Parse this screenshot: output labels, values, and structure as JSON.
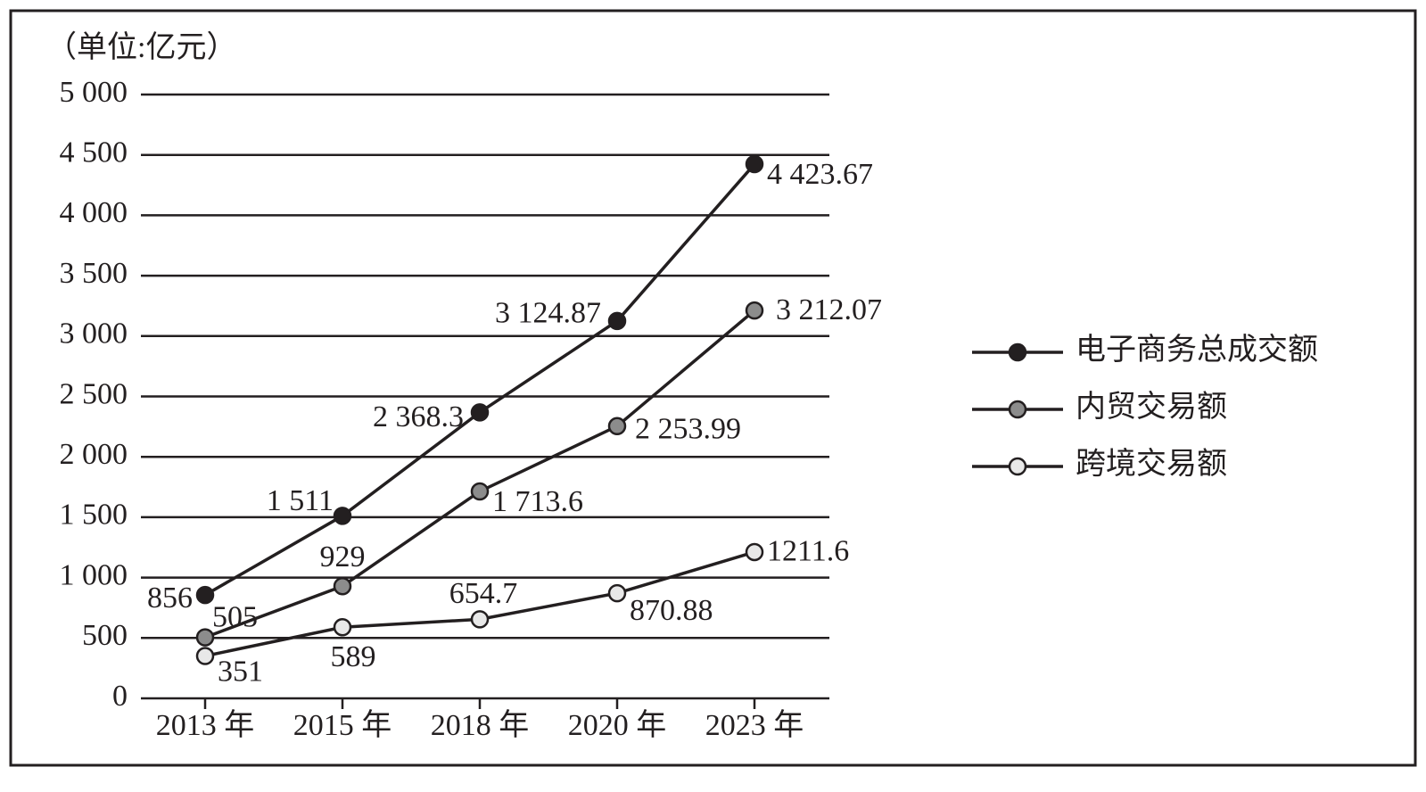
{
  "chart_data": {
    "type": "line",
    "unit_label": "（单位:亿元）",
    "categories": [
      "2013 年",
      "2015 年",
      "2018 年",
      "2020 年",
      "2023 年"
    ],
    "series": [
      {
        "name": "电子商务总成交额",
        "color": "#231f20",
        "values": [
          856,
          1511,
          2368.3,
          3124.87,
          4423.67
        ],
        "value_labels": [
          "856",
          "1 511",
          "2 368.3",
          "3 124.87",
          "4 423.67"
        ]
      },
      {
        "name": "内贸交易额",
        "color": "#8c8c8c",
        "values": [
          505,
          929,
          1713.6,
          2253.99,
          3212.07
        ],
        "value_labels": [
          "505",
          "929",
          "1 713.6",
          "2 253.99",
          "3 212.07"
        ]
      },
      {
        "name": "跨境交易额",
        "color": "#e8e8e8",
        "values": [
          351,
          589,
          654.7,
          870.88,
          1211.6
        ],
        "value_labels": [
          "351",
          "589",
          "654.7",
          "870.88",
          "1211.6"
        ]
      }
    ],
    "ylim": [
      0,
      5000
    ],
    "yticks": [
      0,
      500,
      {
        "value": 1000,
        "label": "1 000"
      },
      {
        "value": 1500,
        "label": "1 500"
      },
      {
        "value": 2000,
        "label": "2 000"
      },
      {
        "value": 2500,
        "label": "2 500"
      },
      {
        "value": 3000,
        "label": "3 000"
      },
      {
        "value": 3500,
        "label": "3 500"
      },
      {
        "value": 4000,
        "label": "4 000"
      },
      {
        "value": 4500,
        "label": "4 500"
      },
      {
        "value": 5000,
        "label": "5 000"
      }
    ],
    "grid": true,
    "legend": "right"
  }
}
